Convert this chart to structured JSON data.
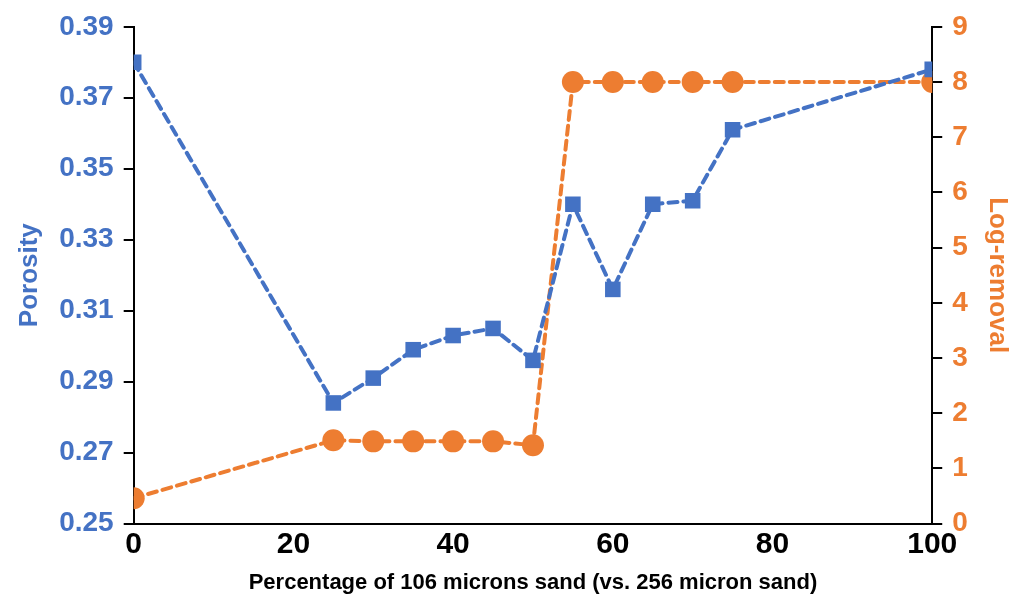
{
  "chart_data": {
    "type": "line",
    "xlabel": "Percentage of 106 microns sand (vs. 256 micron sand)",
    "ylabel": "Porosity",
    "y2label": "Log-removal",
    "xlim": [
      0,
      100
    ],
    "xticks": [
      0,
      20,
      40,
      60,
      80,
      100
    ],
    "ylim": [
      0.25,
      0.39
    ],
    "yticks": [
      0.25,
      0.27,
      0.29,
      0.31,
      0.33,
      0.35,
      0.37,
      0.39
    ],
    "y2lim": [
      0,
      9
    ],
    "y2ticks": [
      0,
      1,
      2,
      3,
      4,
      5,
      6,
      7,
      8,
      9
    ],
    "grid": false,
    "legend": false,
    "line_style": "dashed",
    "series": [
      {
        "color": "#4472c4",
        "marker": "square",
        "x": [
          0,
          25,
          30,
          35,
          40,
          45,
          50,
          55,
          60,
          65,
          70,
          75,
          100
        ],
        "values": [
          0.38,
          0.284,
          0.291,
          0.299,
          0.303,
          0.305,
          0.296,
          0.34,
          0.316,
          0.34,
          0.341,
          0.361,
          0.378
        ]
      },
      {
        "color": "#ed7d31",
        "marker": "circle",
        "axis": "y2",
        "x": [
          0,
          25,
          30,
          35,
          40,
          45,
          50,
          55,
          60,
          65,
          70,
          75,
          100
        ],
        "values": [
          0.46,
          1.51,
          1.49,
          1.49,
          1.49,
          1.49,
          1.42,
          8.0,
          8.0,
          8.0,
          8.0,
          8.0,
          8.0
        ]
      }
    ]
  }
}
